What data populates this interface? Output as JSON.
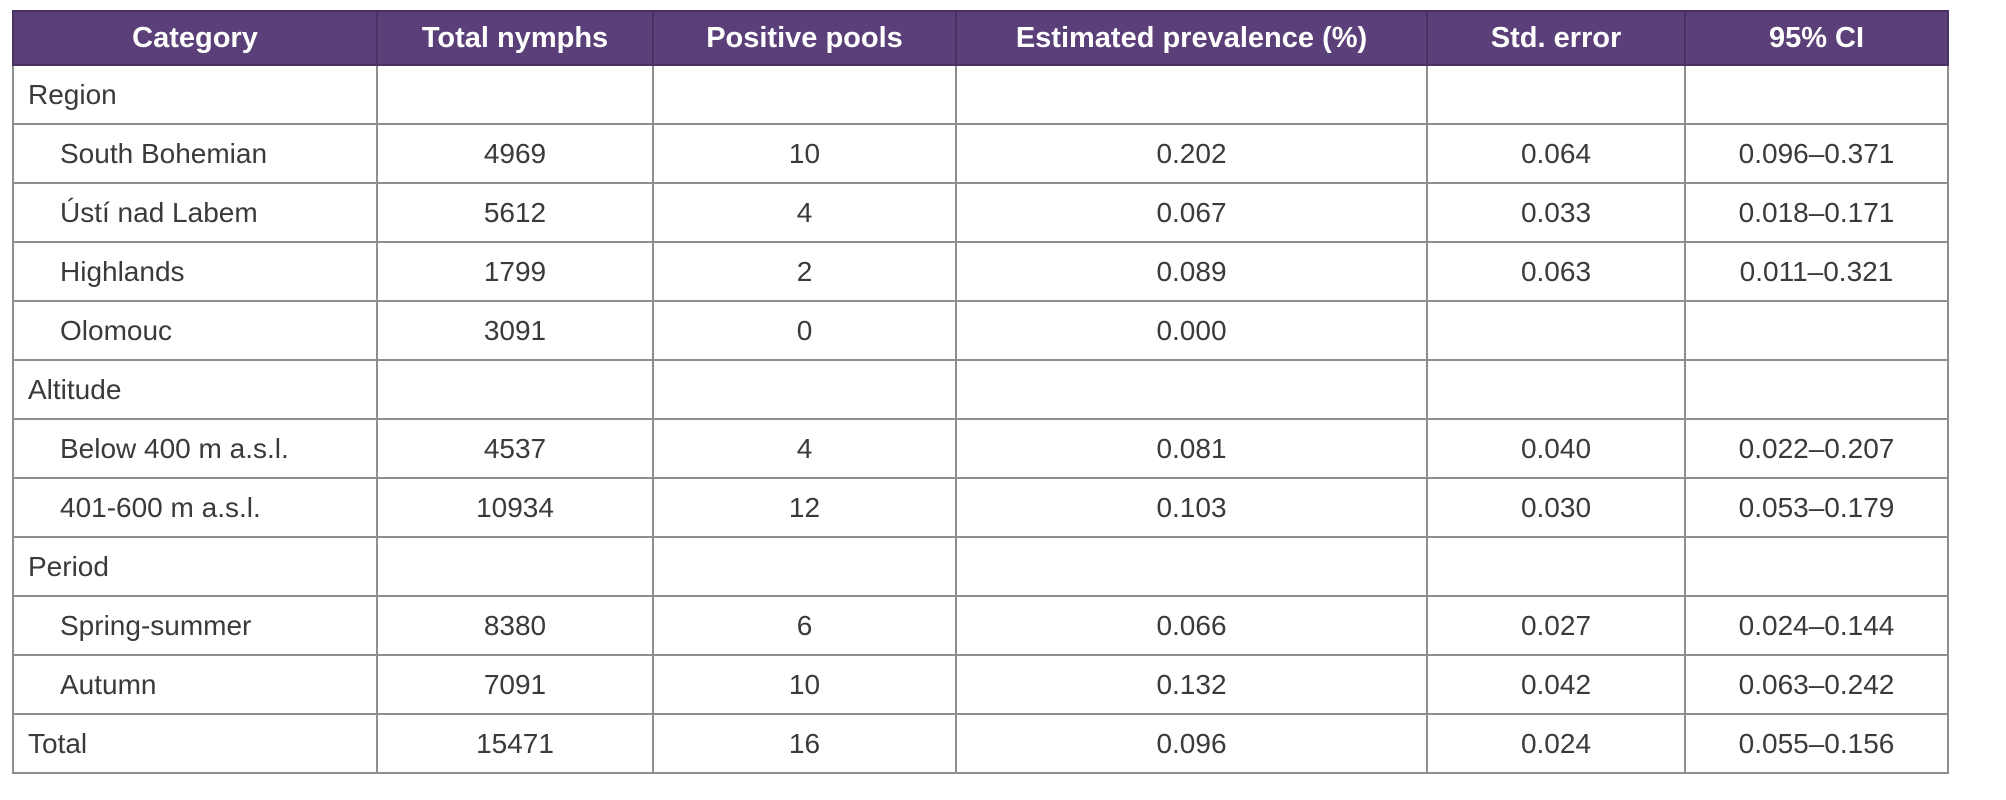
{
  "table": {
    "headers": [
      "Category",
      "Total nymphs",
      "Positive pools",
      "Estimated prevalence (%)",
      "Std. error",
      "95% CI"
    ],
    "rows": [
      {
        "kind": "group",
        "cells": [
          "Region",
          "",
          "",
          "",
          "",
          ""
        ]
      },
      {
        "kind": "sub",
        "cells": [
          "South Bohemian",
          "4969",
          "10",
          "0.202",
          "0.064",
          "0.096–0.371"
        ]
      },
      {
        "kind": "sub",
        "cells": [
          "Ústí nad Labem",
          "5612",
          "4",
          "0.067",
          "0.033",
          "0.018–0.171"
        ]
      },
      {
        "kind": "sub",
        "cells": [
          "Highlands",
          "1799",
          "2",
          "0.089",
          "0.063",
          "0.011–0.321"
        ]
      },
      {
        "kind": "sub",
        "cells": [
          "Olomouc",
          "3091",
          "0",
          "0.000",
          "",
          ""
        ]
      },
      {
        "kind": "group",
        "cells": [
          "Altitude",
          "",
          "",
          "",
          "",
          ""
        ]
      },
      {
        "kind": "sub",
        "cells": [
          "Below 400 m a.s.l.",
          "4537",
          "4",
          "0.081",
          "0.040",
          "0.022–0.207"
        ]
      },
      {
        "kind": "sub",
        "cells": [
          "401-600 m a.s.l.",
          "10934",
          "12",
          "0.103",
          "0.030",
          "0.053–0.179"
        ]
      },
      {
        "kind": "group",
        "cells": [
          "Period",
          "",
          "",
          "",
          "",
          ""
        ]
      },
      {
        "kind": "sub",
        "cells": [
          "Spring-summer",
          "8380",
          "6",
          "0.066",
          "0.027",
          "0.024–0.144"
        ]
      },
      {
        "kind": "sub",
        "cells": [
          "Autumn",
          "7091",
          "10",
          "0.132",
          "0.042",
          "0.063–0.242"
        ]
      },
      {
        "kind": "total",
        "cells": [
          "Total",
          "15471",
          "16",
          "0.096",
          "0.024",
          "0.055–0.156"
        ]
      }
    ]
  },
  "colors": {
    "header_bg": "#5b3f78",
    "header_text": "#ffffff",
    "border": "#8e8e8e",
    "body_text": "#3a3a3a"
  }
}
